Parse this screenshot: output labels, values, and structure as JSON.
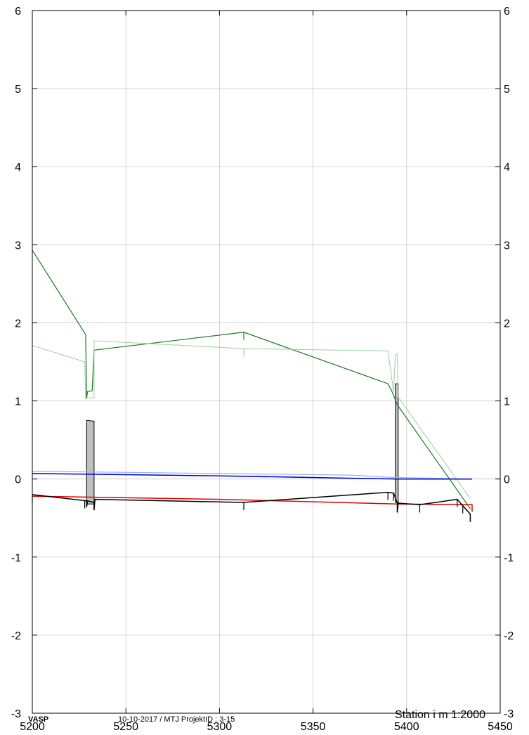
{
  "chart_data": {
    "type": "line",
    "title": "",
    "xlabel": "Station i m",
    "scale_label": "1:2000",
    "ylabel": "",
    "xlim": [
      5200,
      5450
    ],
    "ylim": [
      -3,
      6
    ],
    "x_ticks": [
      "5200",
      "5250",
      "5300",
      "5350",
      "5400",
      "5450"
    ],
    "y_ticks": [
      "6",
      "5",
      "4",
      "3",
      "2",
      "1",
      "0",
      "-1",
      "-2",
      "-3"
    ],
    "grid": true,
    "series": [
      {
        "color": "#1a7a1a",
        "width": 1.2,
        "points": [
          [
            5200,
            2.93
          ],
          [
            5228.5,
            1.85
          ],
          [
            5229,
            1.03
          ],
          [
            5229.5,
            1.12
          ],
          [
            5232,
            1.13
          ],
          [
            5233,
            1.65
          ],
          [
            5313,
            1.88
          ],
          [
            5390,
            1.22
          ],
          [
            5392,
            1.13
          ],
          [
            5395,
            0.95
          ],
          [
            5434,
            -0.38
          ]
        ]
      },
      {
        "color": "#9fce9f",
        "width": 1.0,
        "points": [
          [
            5200,
            1.71
          ],
          [
            5228,
            1.5
          ],
          [
            5228.5,
            1.03
          ],
          [
            5231,
            1.04
          ],
          [
            5233,
            1.04
          ],
          [
            5233,
            1.77
          ],
          [
            5313,
            1.67
          ],
          [
            5390,
            1.64
          ],
          [
            5393,
            1.12
          ],
          [
            5394,
            1.6
          ],
          [
            5395,
            1.6
          ],
          [
            5395.5,
            1.05
          ],
          [
            5434,
            -0.25
          ]
        ]
      },
      {
        "color": "#8fb0ff",
        "width": 1.2,
        "points": [
          [
            5200,
            0.1
          ],
          [
            5300,
            0.07
          ],
          [
            5370,
            0.05
          ],
          [
            5392,
            0.02
          ],
          [
            5434,
            0.0
          ]
        ]
      },
      {
        "color": "#0000cc",
        "width": 1.5,
        "points": [
          [
            5200,
            0.07
          ],
          [
            5300,
            0.04
          ],
          [
            5395,
            0.0
          ],
          [
            5435,
            0.0
          ]
        ]
      },
      {
        "color": "#dd0000",
        "width": 1.5,
        "points": [
          [
            5200,
            -0.22
          ],
          [
            5300,
            -0.26
          ],
          [
            5395,
            -0.32
          ],
          [
            5435,
            -0.33
          ],
          [
            5435,
            -0.42
          ]
        ]
      },
      {
        "color": "#000000",
        "width": 1.5,
        "points": [
          [
            5200,
            -0.2
          ],
          [
            5229,
            -0.28
          ],
          [
            5229,
            -0.36
          ],
          [
            5229.5,
            -0.28
          ],
          [
            5233,
            -0.3
          ],
          [
            5233,
            -0.4
          ],
          [
            5233.5,
            -0.26
          ],
          [
            5313,
            -0.3
          ],
          [
            5390,
            -0.17
          ],
          [
            5393,
            -0.18
          ],
          [
            5395,
            -0.31
          ],
          [
            5395,
            -0.43
          ],
          [
            5395.5,
            -0.31
          ],
          [
            5407,
            -0.33
          ],
          [
            5427,
            -0.26
          ],
          [
            5434,
            -0.45
          ],
          [
            5434,
            -0.55
          ]
        ]
      }
    ],
    "drops": [
      {
        "color": "#000000",
        "x": [
          5200,
          5228,
          5233,
          5313,
          5390,
          5393,
          5407,
          5427,
          5430
        ]
      },
      {
        "color": "#1a7a1a",
        "x": [
          5313
        ]
      },
      {
        "color": "#9fce9f",
        "x": [
          5313
        ]
      }
    ],
    "structures": [
      {
        "x0": 5229,
        "x1": 5233,
        "top0": 0.75,
        "top1": 0.74,
        "bottom": -0.32,
        "fill": "#c0c0c0"
      },
      {
        "x0": 5394,
        "x1": 5395.5,
        "top0": 1.22,
        "top1": 1.22,
        "bottom": -0.3,
        "fill": "#c0c0c0"
      }
    ]
  },
  "footer": {
    "brand": "VASP",
    "meta": "10-10-2017 / MTJ    ProjektID : 3-15",
    "station": "Station i m",
    "scale": "1:2000"
  }
}
